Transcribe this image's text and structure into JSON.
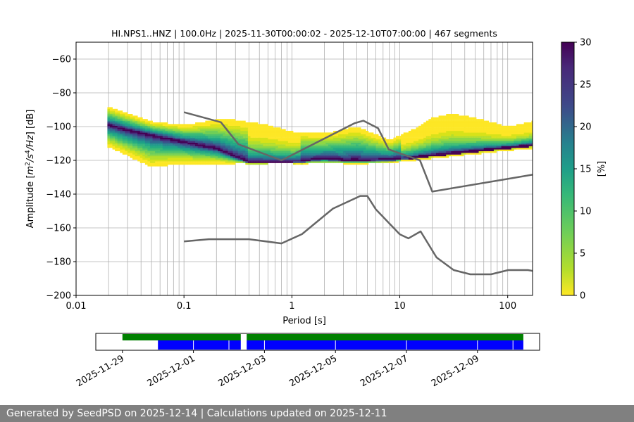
{
  "title": "HI.NPS1..HNZ | 100.0Hz | 2025-11-30T00:00:02 - 2025-12-10T07:00:00 | 467 segments",
  "footer": "Generated by SeedPSD on 2025-12-14 | Calculations updated on 2025-12-11",
  "colors": {
    "model": "#666666",
    "grid": "#b0b0b0",
    "coverage_total": "#008000",
    "coverage_used": "#0000ff",
    "low_gradient": "#fde725",
    "high_gradient": "#440154"
  },
  "chart_data": [
    {
      "type": "heatmap",
      "name": "ppsd",
      "xlabel": "Period [s]",
      "ylabel": "Amplitude [m²/s⁴/Hz] [dB]",
      "ylabel_parts": {
        "prefix": "Amplitude [",
        "m": "m",
        "exp1": "2",
        "mid": "/s",
        "exp2": "4",
        "hz": "/Hz",
        "suffix": "] [dB]"
      },
      "xscale": "log",
      "xlim": [
        0.01,
        170
      ],
      "ylim": [
        -200,
        -50
      ],
      "xticks": [
        0.01,
        0.1,
        1,
        10,
        100
      ],
      "xtick_labels": [
        "0.01",
        "0.1",
        "1",
        "10",
        "100"
      ],
      "yticks": [
        -200,
        -180,
        -160,
        -140,
        -120,
        -100,
        -80,
        -60
      ],
      "ytick_labels": [
        "−200",
        "−180",
        "−160",
        "−140",
        "−120",
        "−100",
        "−80",
        "−60"
      ],
      "grid": true,
      "mode_curve": [
        [
          0.02,
          -99
        ],
        [
          0.03,
          -102
        ],
        [
          0.05,
          -105
        ],
        [
          0.1,
          -109
        ],
        [
          0.2,
          -113
        ],
        [
          0.3,
          -118
        ],
        [
          0.4,
          -121
        ],
        [
          0.7,
          -121
        ],
        [
          1.0,
          -121
        ],
        [
          2.0,
          -119
        ],
        [
          3.0,
          -120
        ],
        [
          5.0,
          -120
        ],
        [
          8.0,
          -119.5
        ],
        [
          12.0,
          -118.5
        ],
        [
          20.0,
          -117
        ],
        [
          40.0,
          -115
        ],
        [
          80.0,
          -113
        ],
        [
          170.0,
          -111
        ]
      ],
      "spread_upper": [
        [
          0.02,
          -88
        ],
        [
          0.05,
          -97
        ],
        [
          0.1,
          -99
        ],
        [
          0.2,
          -96
        ],
        [
          0.3,
          -96
        ],
        [
          0.6,
          -99
        ],
        [
          1.0,
          -103
        ],
        [
          2.0,
          -104
        ],
        [
          4.0,
          -100
        ],
        [
          8.0,
          -108
        ],
        [
          15.0,
          -100
        ],
        [
          20.0,
          -95
        ],
        [
          30.0,
          -92
        ],
        [
          60.0,
          -96
        ],
        [
          100.0,
          -100
        ],
        [
          170.0,
          -97
        ]
      ],
      "spread_lower": [
        [
          0.02,
          -112
        ],
        [
          0.05,
          -124
        ],
        [
          0.1,
          -122
        ],
        [
          0.3,
          -122
        ],
        [
          0.6,
          -121
        ],
        [
          1.0,
          -121
        ],
        [
          2.0,
          -122
        ],
        [
          5.0,
          -121
        ],
        [
          10.0,
          -120
        ],
        [
          20.0,
          -119
        ],
        [
          50.0,
          -116
        ],
        [
          100.0,
          -114
        ],
        [
          170.0,
          -113
        ]
      ],
      "nhnm": [
        [
          0.1,
          -91.5
        ],
        [
          0.22,
          -97.4
        ],
        [
          0.32,
          -110.5
        ],
        [
          0.8,
          -120
        ],
        [
          3.8,
          -98
        ],
        [
          4.6,
          -96.5
        ],
        [
          6.3,
          -101
        ],
        [
          7.9,
          -113.5
        ],
        [
          15.4,
          -120
        ],
        [
          20.0,
          -138.5
        ],
        [
          170.0,
          -128.5
        ]
      ],
      "nlnm": [
        [
          0.1,
          -168
        ],
        [
          0.17,
          -166.7
        ],
        [
          0.4,
          -166.7
        ],
        [
          0.8,
          -169.2
        ],
        [
          1.24,
          -163.7
        ],
        [
          2.4,
          -148.6
        ],
        [
          4.3,
          -141.1
        ],
        [
          5.0,
          -141.1
        ],
        [
          6.0,
          -149
        ],
        [
          10.0,
          -163.8
        ],
        [
          12.0,
          -166.2
        ],
        [
          15.6,
          -162.1
        ],
        [
          21.9,
          -177.5
        ],
        [
          31.6,
          -185
        ],
        [
          45.0,
          -187.5
        ],
        [
          70.0,
          -187.5
        ],
        [
          101.0,
          -185
        ],
        [
          154.0,
          -185
        ],
        [
          170.0,
          -185.5
        ]
      ]
    },
    {
      "type": "heatmap",
      "name": "colorbar",
      "ylabel": "[%]",
      "range": [
        0,
        30
      ],
      "ticks": [
        0,
        5,
        10,
        15,
        20,
        25,
        30
      ],
      "tick_labels": [
        "0",
        "5",
        "10",
        "15",
        "20",
        "25",
        "30"
      ]
    },
    {
      "type": "bar",
      "name": "coverage",
      "date_ticks": [
        "2025-11-29",
        "2025-12-01",
        "2025-12-03",
        "2025-12-05",
        "2025-12-07",
        "2025-12-09"
      ],
      "xlim": [
        "2025-11-28T06:00:00",
        "2025-12-10T18:00:00"
      ],
      "total_segments": [
        [
          "2025-11-29T00:00:00",
          "2025-12-02T08:00:00"
        ],
        [
          "2025-12-02T12:00:00",
          "2025-12-10T07:00:00"
        ]
      ],
      "used_segments": [
        [
          "2025-11-30T00:00:02",
          "2025-12-02T08:00:00"
        ],
        [
          "2025-12-02T12:00:00",
          "2025-12-10T07:00:00"
        ]
      ],
      "gap_marks": [
        "2025-12-01T00:00:00",
        "2025-12-02T00:00:00",
        "2025-12-03T00:00:00",
        "2025-12-05T00:00:00",
        "2025-12-07T00:00:00",
        "2025-12-09T00:00:00",
        "2025-12-10T00:00:00"
      ]
    }
  ]
}
